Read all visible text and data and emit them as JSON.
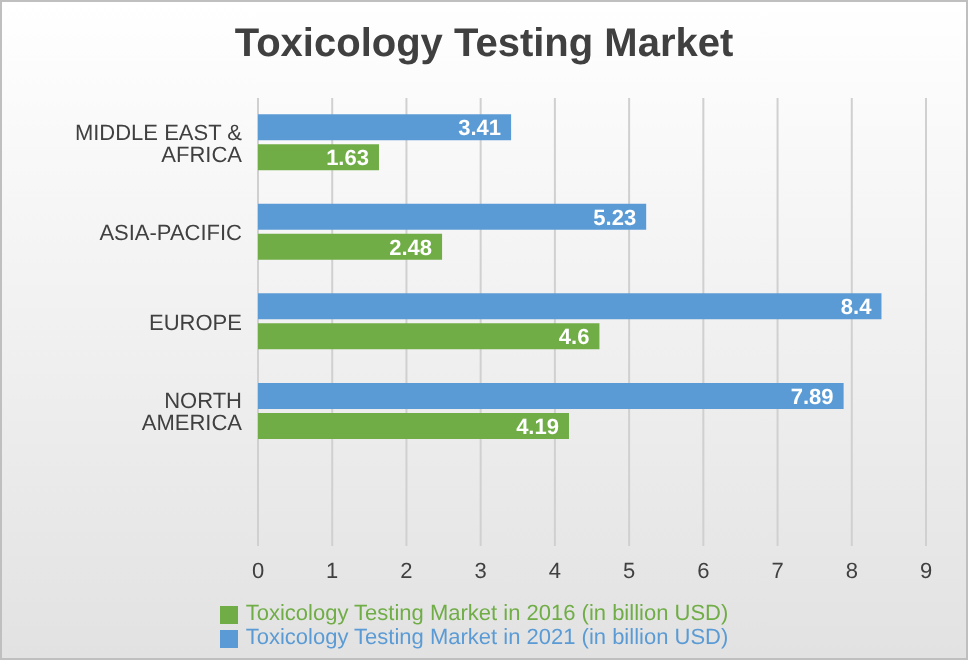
{
  "chart_data": {
    "type": "bar",
    "orientation": "horizontal",
    "title": "Toxicology Testing Market",
    "categories": [
      "MIDDLE EAST & AFRICA",
      "ASIA-PACIFIC",
      "EUROPE",
      "NORTH AMERICA",
      null
    ],
    "series": [
      {
        "name": "Toxicology Testing Market in 2021 (in billion USD)",
        "color": "#5b9bd5",
        "values": [
          3.41,
          5.23,
          8.4,
          7.89,
          null
        ]
      },
      {
        "name": "Toxicology Testing Market in 2016 (in billion USD)",
        "color": "#70ad47",
        "values": [
          1.63,
          2.48,
          4.6,
          4.19,
          null
        ]
      }
    ],
    "xlim": [
      0,
      9
    ],
    "xticks": [
      0,
      1,
      2,
      3,
      4,
      5,
      6,
      7,
      8,
      9
    ],
    "grid": "x",
    "legend": "bottom",
    "data_labels": true
  }
}
